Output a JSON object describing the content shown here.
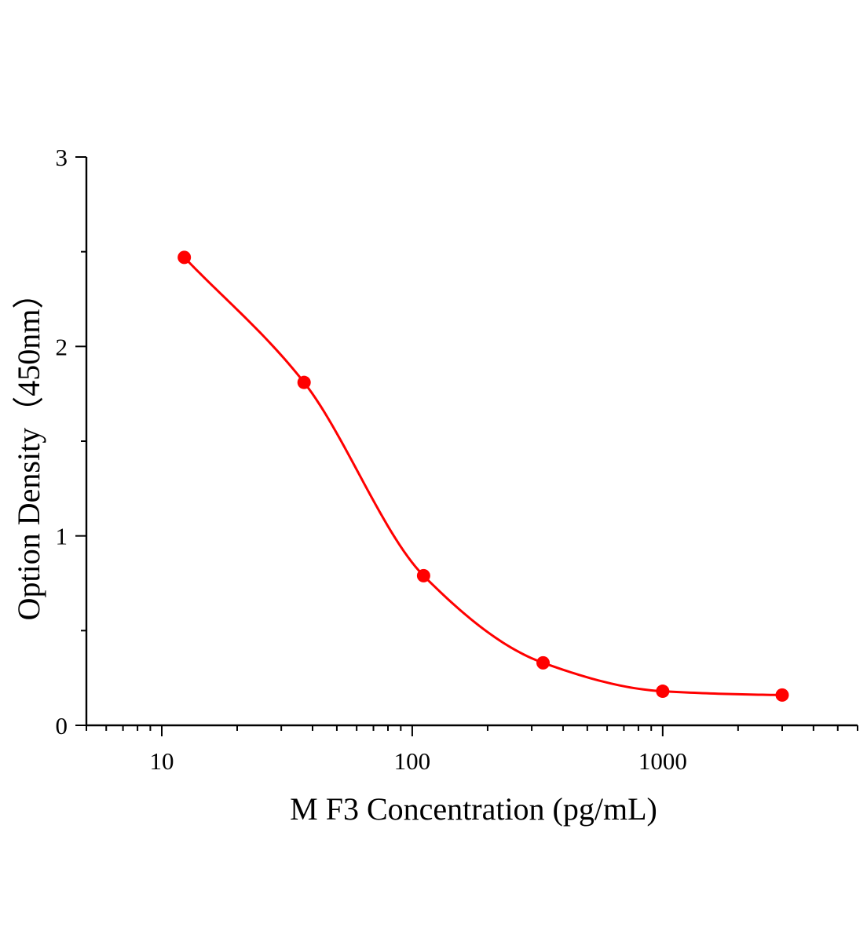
{
  "chart_data": {
    "type": "scatter",
    "xlabel": "M F3 Concentration (pg/mL)",
    "ylabel": "Option Density（450nm）",
    "xscale": "log",
    "xlim": [
      5,
      6000
    ],
    "ylim": [
      0,
      3
    ],
    "x_ticks": [
      10,
      100,
      1000
    ],
    "x_tick_labels": [
      "10",
      "100",
      "1000"
    ],
    "y_ticks": [
      0,
      1,
      2,
      3
    ],
    "y_tick_labels": [
      "0",
      "1",
      "2",
      "3"
    ],
    "grid": false,
    "color": "#ff0000",
    "series": [
      {
        "points": [
          {
            "x": 12.3,
            "y": 2.47
          },
          {
            "x": 37,
            "y": 1.81
          },
          {
            "x": 111,
            "y": 0.79
          },
          {
            "x": 333,
            "y": 0.33
          },
          {
            "x": 1000,
            "y": 0.18
          },
          {
            "x": 3000,
            "y": 0.16
          }
        ],
        "fit": "4-parameter logistic"
      }
    ]
  }
}
